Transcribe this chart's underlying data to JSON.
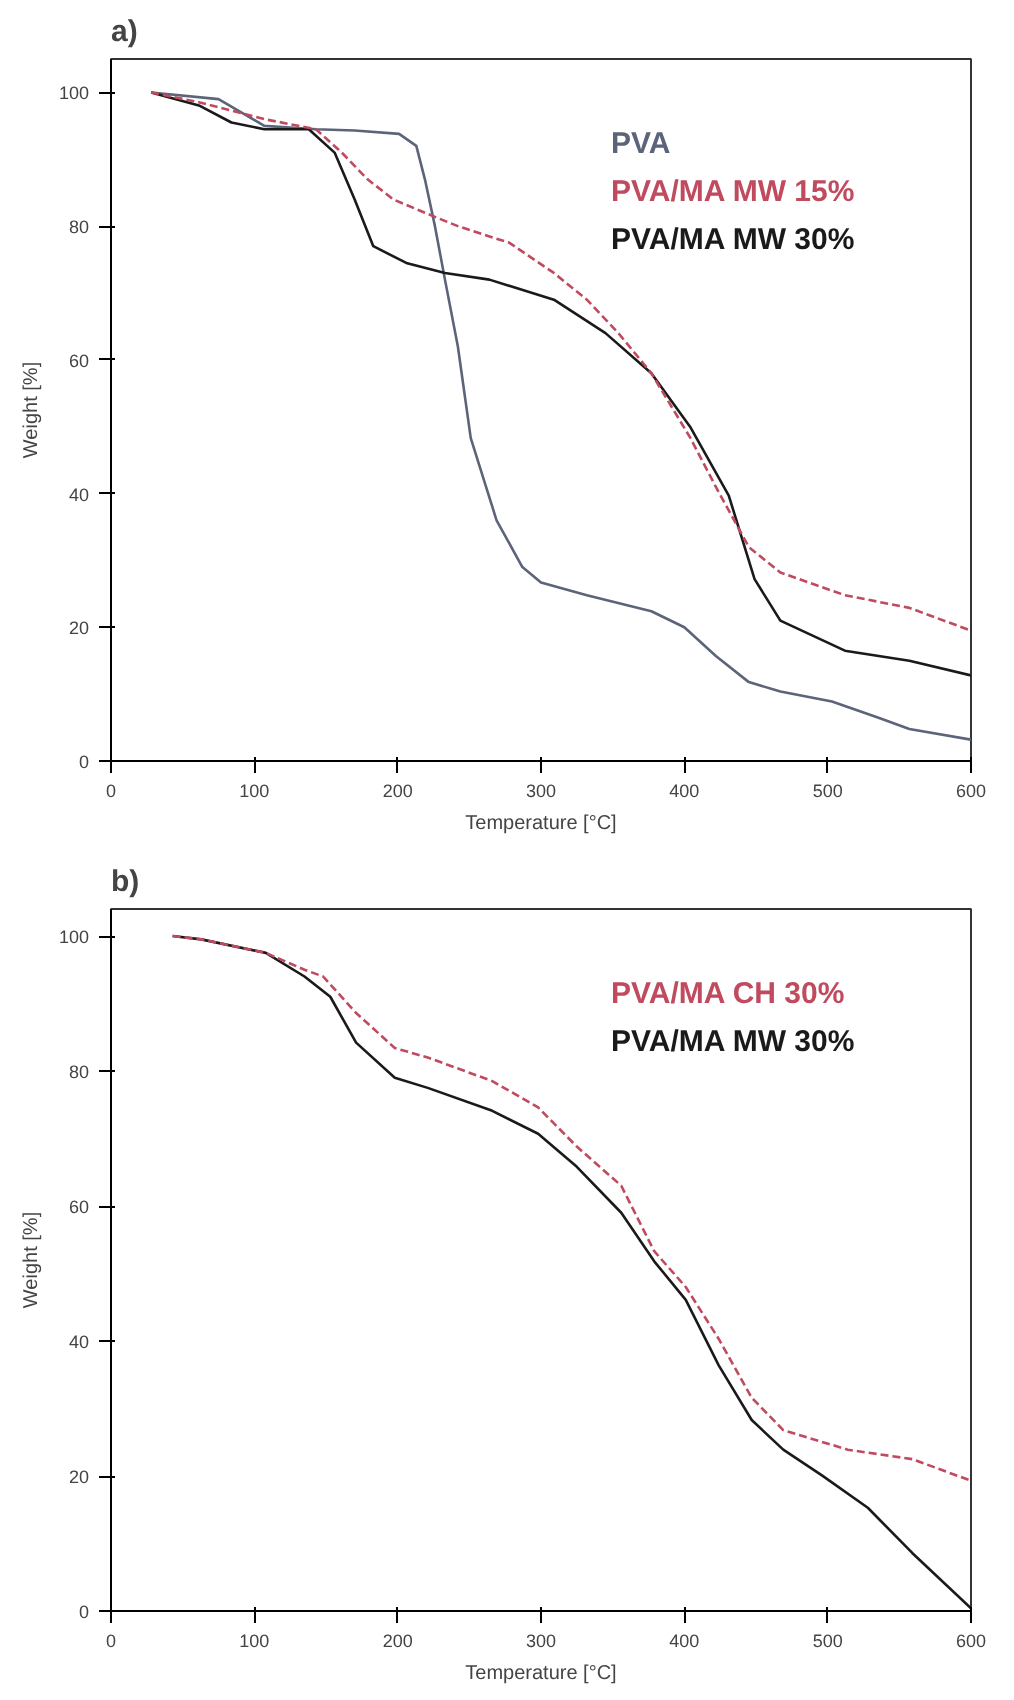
{
  "chart_data": [
    {
      "type": "line",
      "title": "a)",
      "xlabel": "Temperature [°C]",
      "ylabel": "Weight [%]",
      "xlim": [
        0,
        600
      ],
      "ylim": [
        0,
        105
      ],
      "xticks": [
        0,
        100,
        200,
        300,
        400,
        500,
        600
      ],
      "yticks": [
        0,
        20,
        40,
        60,
        80,
        100
      ],
      "grid": false,
      "legend": "top right",
      "marker": "none",
      "series": [
        {
          "name": "PVA",
          "color": "#5b6478",
          "line_style": "solid",
          "x": [
            28,
            75,
            107,
            143,
            170,
            201,
            213,
            219,
            226,
            233,
            242,
            251,
            269,
            287,
            300,
            332,
            377,
            400,
            422,
            445,
            467,
            503,
            535,
            557,
            600
          ],
          "values": [
            100,
            99,
            95,
            94.5,
            94.3,
            93.8,
            92,
            87,
            80,
            72,
            62,
            48.3,
            36,
            29,
            26.7,
            24.8,
            22.4,
            20,
            15.7,
            11.8,
            10.4,
            8.9,
            6.5,
            4.8,
            3.2
          ]
        },
        {
          "name": "PVA/MA MW 15%",
          "color": "#c04a5e",
          "line_style": "dashed",
          "x": [
            28,
            62,
            107,
            143,
            161,
            179,
            197,
            219,
            242,
            278,
            309,
            332,
            354,
            377,
            404,
            422,
            445,
            467,
            512,
            557,
            600
          ],
          "values": [
            100,
            98.5,
            96,
            94.5,
            91,
            87,
            84,
            82,
            80,
            77.5,
            73,
            69,
            64,
            58,
            48.4,
            41,
            32,
            28.2,
            24.8,
            22.9,
            19.5
          ]
        },
        {
          "name": "PVA/MA MW 30%",
          "color": "#1a1a1a",
          "line_style": "solid",
          "x": [
            28,
            62,
            84,
            107,
            138,
            156,
            170,
            183,
            206,
            233,
            264,
            309,
            345,
            377,
            404,
            431,
            449,
            467,
            512,
            557,
            600
          ],
          "values": [
            100,
            98,
            95.5,
            94.5,
            94.5,
            91,
            84,
            77,
            74.5,
            73,
            72,
            69,
            64,
            58,
            50,
            39.7,
            27.2,
            21,
            16.5,
            15,
            12.8
          ]
        }
      ]
    },
    {
      "type": "line",
      "title": "b)",
      "xlabel": "Temperature [°C]",
      "ylabel": "Weight [%]",
      "xlim": [
        0,
        600
      ],
      "ylim": [
        0,
        104
      ],
      "xticks": [
        0,
        100,
        200,
        300,
        400,
        500,
        600
      ],
      "yticks": [
        0,
        20,
        40,
        60,
        80,
        100
      ],
      "grid": false,
      "legend": "top right",
      "marker": "none",
      "series": [
        {
          "name": "PVA/MA CH 30%",
          "color": "#c04a5e",
          "line_style": "dashed",
          "x": [
            43,
            63,
            108,
            135,
            148,
            171,
            198,
            221,
            266,
            298,
            325,
            356,
            379,
            401,
            424,
            447,
            469,
            514,
            559,
            600
          ],
          "values": [
            100,
            99.5,
            97.5,
            95,
            94,
            88.6,
            83.4,
            82,
            78.5,
            74.6,
            68.8,
            63,
            53.3,
            48,
            40.3,
            31.6,
            26.8,
            23.9,
            22.5,
            19.3
          ]
        },
        {
          "name": "PVA/MA MW 30%",
          "color": "#1a1a1a",
          "line_style": "solid",
          "x": [
            43,
            63,
            108,
            135,
            153,
            171,
            198,
            221,
            266,
            298,
            325,
            356,
            379,
            401,
            424,
            447,
            469,
            496,
            528,
            559,
            600
          ],
          "values": [
            100,
            99.5,
            97.5,
            94,
            91,
            84.2,
            79,
            77.5,
            74.1,
            70.7,
            65.8,
            59,
            51.8,
            46.1,
            36.4,
            28.3,
            23.9,
            20.1,
            15.3,
            8.6,
            0.4
          ]
        }
      ]
    }
  ]
}
